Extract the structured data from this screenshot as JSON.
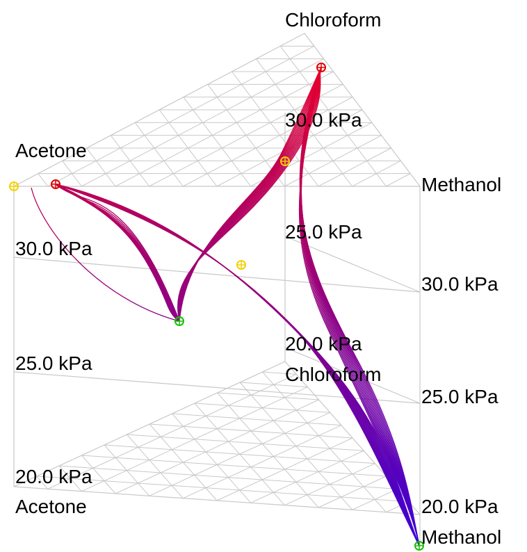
{
  "labels": {
    "top_chloroform": "Chloroform",
    "left_acetone_top": "Acetone",
    "right_methanol_top": "Methanol",
    "center_p30": "30.0 kPa",
    "center_p25": "25.0 kPa",
    "center_p20": "20.0 kPa",
    "center_chloroform": "Chloroform",
    "left_p30": "30.0 kPa",
    "left_p25": "25.0 kPa",
    "left_p20": "20.0 kPa",
    "left_acetone_bottom": "Acetone",
    "right_p30": "30.0 kPa",
    "right_p25": "25.0 kPa",
    "right_p20": "20.0 kPa",
    "right_methanol_bottom": "Methanol"
  },
  "colors": {
    "grid": "#c8c8c8",
    "curve_high": "#e8002a",
    "curve_low": "#3a00d8",
    "marker_red": "#e00000",
    "marker_yellow": "#f2d100",
    "marker_green": "#16c000"
  }
}
